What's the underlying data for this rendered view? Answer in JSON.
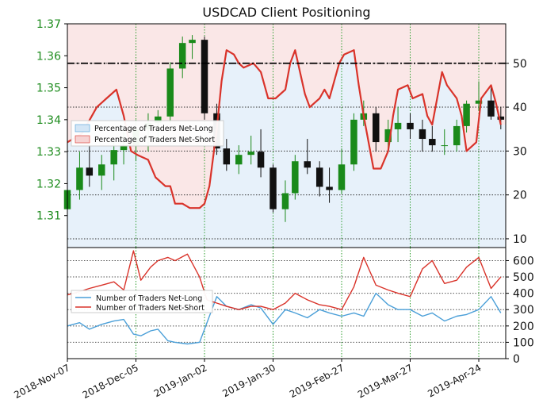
{
  "chart_data": [
    {
      "type": "candlestick+line",
      "title": "USDCAD Client Positioning",
      "colors": {
        "bullish": "#1a8a1a",
        "bearish": "#111111",
        "net_long_line": "#4a9fd8",
        "net_short_line": "#d9332a",
        "net_long_fill": "#d3e6f6",
        "net_short_fill": "#f6d3d3",
        "price_tick_labels": "#1e8c1e",
        "reference_line": "#000000",
        "grid": "#2e9e2e"
      },
      "price_axis": {
        "side": "left",
        "range": [
          1.3,
          1.37
        ],
        "ticks": [
          "1.31",
          "1.32",
          "1.33",
          "1.34",
          "1.35",
          "1.36",
          "1.37"
        ]
      },
      "percent_axis": {
        "side": "right",
        "range": [
          8,
          59
        ],
        "ticks": [
          "10",
          "20",
          "30",
          "40",
          "50"
        ]
      },
      "reference_line_value": 50,
      "legend": {
        "position": "left-middle",
        "entries": [
          "Percentage of Traders Net-Long",
          "Percentage of Traders Net-Short"
        ]
      },
      "series": [
        {
          "name": "Percentage of Traders Net-Short",
          "x": [
            "2018-11-07",
            "2018-11-13",
            "2018-11-19",
            "2018-11-23",
            "2018-11-27",
            "2018-11-30",
            "2018-12-03",
            "2018-12-06",
            "2018-12-10",
            "2018-12-13",
            "2018-12-17",
            "2018-12-19",
            "2018-12-21",
            "2018-12-24",
            "2018-12-27",
            "2018-12-31",
            "2019-01-02",
            "2019-01-04",
            "2019-01-07",
            "2019-01-09",
            "2019-01-11",
            "2019-01-14",
            "2019-01-16",
            "2019-01-18",
            "2019-01-22",
            "2019-01-25",
            "2019-01-28",
            "2019-01-31",
            "2019-02-04",
            "2019-02-06",
            "2019-02-08",
            "2019-02-12",
            "2019-02-14",
            "2019-02-18",
            "2019-02-20",
            "2019-02-22",
            "2019-02-26",
            "2019-02-28",
            "2019-03-04",
            "2019-03-06",
            "2019-03-08",
            "2019-03-12",
            "2019-03-15",
            "2019-03-18",
            "2019-03-20",
            "2019-03-22",
            "2019-03-26",
            "2019-03-28",
            "2019-04-01",
            "2019-04-03",
            "2019-04-05",
            "2019-04-09",
            "2019-04-11",
            "2019-04-15",
            "2019-04-17",
            "2019-04-19",
            "2019-04-23",
            "2019-04-25",
            "2019-04-29",
            "2019-05-01",
            "2019-05-03"
          ],
          "values": [
            32,
            34,
            40,
            42,
            44,
            38,
            30,
            29,
            28,
            24,
            22,
            22,
            18,
            18,
            17,
            17,
            18,
            22,
            35,
            46,
            53,
            52,
            50,
            49,
            50,
            48,
            42,
            42,
            44,
            50,
            53,
            43,
            40,
            42,
            44,
            42,
            50,
            52,
            53,
            45,
            38,
            26,
            26,
            30,
            38,
            44,
            45,
            42,
            43,
            38,
            36,
            48,
            45,
            42,
            38,
            30,
            32,
            42,
            45,
            41,
            36
          ]
        },
        {
          "name": "Percentage of Traders Net-Long",
          "x": [
            "2018-11-07",
            "2018-11-13",
            "2018-11-19",
            "2018-11-23",
            "2018-11-27",
            "2018-11-30",
            "2018-12-03",
            "2018-12-06",
            "2018-12-10",
            "2018-12-13",
            "2018-12-17",
            "2018-12-19",
            "2018-12-21",
            "2018-12-24",
            "2018-12-27",
            "2018-12-31",
            "2019-01-02",
            "2019-01-04",
            "2019-01-07",
            "2019-01-09",
            "2019-01-11",
            "2019-01-14",
            "2019-01-16",
            "2019-01-18",
            "2019-01-22",
            "2019-01-25",
            "2019-01-28",
            "2019-01-31",
            "2019-02-04",
            "2019-02-06",
            "2019-02-08",
            "2019-02-12",
            "2019-02-14",
            "2019-02-18",
            "2019-02-20",
            "2019-02-22",
            "2019-02-26",
            "2019-02-28",
            "2019-03-04",
            "2019-03-06",
            "2019-03-08",
            "2019-03-12",
            "2019-03-15",
            "2019-03-18",
            "2019-03-20",
            "2019-03-22",
            "2019-03-26",
            "2019-03-28",
            "2019-04-01",
            "2019-04-03",
            "2019-04-05",
            "2019-04-09",
            "2019-04-11",
            "2019-04-15",
            "2019-04-17",
            "2019-04-19",
            "2019-04-23",
            "2019-04-25",
            "2019-04-29",
            "2019-05-01",
            "2019-05-03"
          ],
          "values": [
            68,
            66,
            60,
            58,
            56,
            62,
            70,
            71,
            72,
            76,
            78,
            78,
            82,
            82,
            83,
            83,
            82,
            78,
            65,
            54,
            47,
            48,
            50,
            51,
            50,
            52,
            58,
            58,
            56,
            50,
            47,
            57,
            60,
            58,
            56,
            58,
            50,
            48,
            47,
            55,
            62,
            74,
            74,
            70,
            62,
            56,
            55,
            58,
            57,
            62,
            64,
            52,
            55,
            58,
            62,
            70,
            68,
            58,
            55,
            59,
            64
          ]
        },
        {
          "name": "USDCAD",
          "type": "candlestick",
          "x": [
            "2018-11-07",
            "2018-11-12",
            "2018-11-16",
            "2018-11-21",
            "2018-11-26",
            "2018-11-30",
            "2018-12-05",
            "2018-12-10",
            "2018-12-14",
            "2018-12-19",
            "2018-12-24",
            "2018-12-28",
            "2019-01-02",
            "2019-01-07",
            "2019-01-11",
            "2019-01-16",
            "2019-01-21",
            "2019-01-25",
            "2019-01-30",
            "2019-02-04",
            "2019-02-08",
            "2019-02-13",
            "2019-02-18",
            "2019-02-22",
            "2019-02-27",
            "2019-03-04",
            "2019-03-08",
            "2019-03-13",
            "2019-03-18",
            "2019-03-22",
            "2019-03-27",
            "2019-04-01",
            "2019-04-05",
            "2019-04-10",
            "2019-04-15",
            "2019-04-19",
            "2019-04-24",
            "2019-04-29",
            "2019-05-03"
          ],
          "open": [
            1.312,
            1.318,
            1.325,
            1.3225,
            1.326,
            1.3305,
            1.332,
            1.337,
            1.339,
            1.341,
            1.356,
            1.364,
            1.365,
            1.342,
            1.331,
            1.326,
            1.329,
            1.33,
            1.325,
            1.312,
            1.317,
            1.327,
            1.325,
            1.319,
            1.318,
            1.326,
            1.34,
            1.342,
            1.333,
            1.337,
            1.339,
            1.337,
            1.334,
            1.332,
            1.332,
            1.338,
            1.345,
            1.346,
            1.341
          ],
          "high": [
            1.325,
            1.33,
            1.332,
            1.329,
            1.333,
            1.336,
            1.34,
            1.342,
            1.343,
            1.358,
            1.366,
            1.3665,
            1.366,
            1.345,
            1.334,
            1.332,
            1.335,
            1.337,
            1.326,
            1.321,
            1.329,
            1.334,
            1.327,
            1.325,
            1.331,
            1.342,
            1.346,
            1.344,
            1.34,
            1.344,
            1.342,
            1.34,
            1.338,
            1.337,
            1.34,
            1.346,
            1.352,
            1.35,
            1.344
          ],
          "low": [
            1.306,
            1.315,
            1.319,
            1.318,
            1.321,
            1.326,
            1.327,
            1.33,
            1.333,
            1.339,
            1.353,
            1.359,
            1.34,
            1.329,
            1.324,
            1.323,
            1.326,
            1.322,
            1.311,
            1.308,
            1.315,
            1.323,
            1.316,
            1.314,
            1.317,
            1.324,
            1.338,
            1.33,
            1.33,
            1.333,
            1.334,
            1.33,
            1.33,
            1.329,
            1.33,
            1.336,
            1.343,
            1.34,
            1.337
          ],
          "close": [
            1.318,
            1.325,
            1.3225,
            1.326,
            1.3305,
            1.332,
            1.337,
            1.339,
            1.341,
            1.356,
            1.364,
            1.365,
            1.342,
            1.331,
            1.326,
            1.329,
            1.33,
            1.325,
            1.312,
            1.317,
            1.327,
            1.325,
            1.319,
            1.318,
            1.326,
            1.34,
            1.342,
            1.333,
            1.337,
            1.339,
            1.337,
            1.334,
            1.332,
            1.332,
            1.338,
            1.345,
            1.346,
            1.341,
            1.34
          ]
        }
      ]
    },
    {
      "type": "line",
      "y_axis": {
        "side": "right",
        "range": [
          0,
          680
        ],
        "ticks": [
          "0",
          "100",
          "200",
          "300",
          "400",
          "500",
          "600"
        ]
      },
      "x_tick_labels": [
        "2018-Nov-07",
        "2018-Dec-05",
        "2019-Jan-02",
        "2019-Jan-30",
        "2019-Feb-27",
        "2019-Mar-27",
        "2019-Apr-24"
      ],
      "x_ticks": [
        "2018-11-07",
        "2018-12-05",
        "2019-01-02",
        "2019-01-30",
        "2019-02-27",
        "2019-03-27",
        "2019-04-24"
      ],
      "x_range": [
        "2018-11-07",
        "2019-05-05"
      ],
      "legend": {
        "position": "left-middle",
        "entries": [
          "Number of Traders Net-Long",
          "Number of Traders Net-Short"
        ]
      },
      "series": [
        {
          "name": "Number of Traders Net-Long",
          "x": [
            "2018-11-07",
            "2018-11-12",
            "2018-11-16",
            "2018-11-21",
            "2018-11-26",
            "2018-11-30",
            "2018-12-04",
            "2018-12-07",
            "2018-12-11",
            "2018-12-14",
            "2018-12-18",
            "2018-12-21",
            "2018-12-26",
            "2018-12-31",
            "2019-01-03",
            "2019-01-07",
            "2019-01-11",
            "2019-01-16",
            "2019-01-21",
            "2019-01-25",
            "2019-01-30",
            "2019-02-04",
            "2019-02-08",
            "2019-02-13",
            "2019-02-18",
            "2019-02-22",
            "2019-02-27",
            "2019-03-04",
            "2019-03-08",
            "2019-03-13",
            "2019-03-18",
            "2019-03-22",
            "2019-03-27",
            "2019-04-01",
            "2019-04-05",
            "2019-04-10",
            "2019-04-15",
            "2019-04-19",
            "2019-04-24",
            "2019-04-29",
            "2019-05-03"
          ],
          "values": [
            200,
            220,
            180,
            210,
            230,
            240,
            150,
            140,
            170,
            180,
            110,
            100,
            90,
            100,
            220,
            380,
            320,
            300,
            330,
            310,
            210,
            300,
            280,
            250,
            300,
            280,
            260,
            280,
            260,
            400,
            330,
            300,
            300,
            260,
            280,
            230,
            260,
            270,
            300,
            380,
            280
          ]
        },
        {
          "name": "Number of Traders Net-Short",
          "x": [
            "2018-11-07",
            "2018-11-12",
            "2018-11-16",
            "2018-11-21",
            "2018-11-26",
            "2018-11-30",
            "2018-12-04",
            "2018-12-07",
            "2018-12-11",
            "2018-12-14",
            "2018-12-18",
            "2018-12-21",
            "2018-12-26",
            "2018-12-31",
            "2019-01-03",
            "2019-01-07",
            "2019-01-11",
            "2019-01-16",
            "2019-01-21",
            "2019-01-25",
            "2019-01-30",
            "2019-02-04",
            "2019-02-08",
            "2019-02-13",
            "2019-02-18",
            "2019-02-22",
            "2019-02-27",
            "2019-03-04",
            "2019-03-08",
            "2019-03-13",
            "2019-03-18",
            "2019-03-22",
            "2019-03-27",
            "2019-04-01",
            "2019-04-05",
            "2019-04-10",
            "2019-04-15",
            "2019-04-19",
            "2019-04-24",
            "2019-04-29",
            "2019-05-03"
          ],
          "values": [
            390,
            410,
            430,
            450,
            470,
            420,
            660,
            480,
            560,
            600,
            620,
            600,
            640,
            500,
            360,
            340,
            320,
            300,
            320,
            320,
            300,
            340,
            400,
            360,
            330,
            320,
            300,
            440,
            620,
            450,
            420,
            400,
            380,
            550,
            600,
            460,
            480,
            560,
            620,
            430,
            500
          ]
        }
      ]
    }
  ]
}
